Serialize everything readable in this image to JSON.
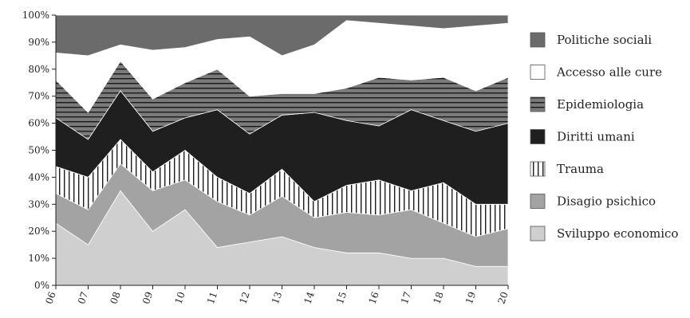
{
  "chart_data": {
    "type": "area",
    "stacked": true,
    "normalized": true,
    "title": "",
    "xlabel": "",
    "ylabel": "",
    "x": [
      "2006",
      "2007",
      "2008",
      "2009",
      "2010",
      "2011",
      "2012",
      "2013",
      "2014",
      "2015",
      "2016",
      "2017",
      "2018",
      "2019",
      "2020"
    ],
    "x_tick_labels": [
      "06",
      "07",
      "08",
      "09",
      "10",
      "11",
      "12",
      "13",
      "14",
      "15",
      "16",
      "17",
      "18",
      "19",
      "20"
    ],
    "y_tick_labels": [
      "0%",
      "10%",
      "20%",
      "30%",
      "40%",
      "50%",
      "60%",
      "70%",
      "80%",
      "90%",
      "100%"
    ],
    "ylim": [
      0,
      100
    ],
    "grid": false,
    "legend_position": "right",
    "series": [
      {
        "name": "Sviluppo economico",
        "color": "#cfcfcf",
        "pattern": "solid",
        "values": [
          23,
          15,
          35,
          20,
          28,
          14,
          16,
          18,
          14,
          12,
          12,
          10,
          10,
          7,
          7
        ]
      },
      {
        "name": "Disagio psichico",
        "color": "#a3a3a3",
        "pattern": "solid",
        "values": [
          11,
          13,
          10,
          15,
          11,
          17,
          10,
          15,
          11,
          15,
          14,
          18,
          13,
          11,
          14
        ]
      },
      {
        "name": "Trauma",
        "color": "#ffffff",
        "pattern": "vertical-lines",
        "values": [
          10,
          12,
          9,
          7,
          11,
          9,
          8,
          10,
          6,
          10,
          13,
          7,
          15,
          12,
          9
        ]
      },
      {
        "name": "Diritti umani",
        "color": "#1f1f1f",
        "pattern": "solid",
        "values": [
          18,
          14,
          18,
          15,
          12,
          25,
          22,
          20,
          33,
          24,
          20,
          30,
          23,
          27,
          30
        ]
      },
      {
        "name": "Epidemiologia",
        "color": "#7a7a7a",
        "pattern": "horizontal-lines",
        "values": [
          14,
          10,
          11,
          12,
          13,
          15,
          14,
          8,
          7,
          12,
          18,
          11,
          16,
          15,
          17
        ]
      },
      {
        "name": "Accesso alle cure",
        "color": "#ffffff",
        "pattern": "solid",
        "values": [
          10,
          21,
          6,
          18,
          13,
          11,
          22,
          14,
          18,
          25,
          20,
          20,
          18,
          24,
          20
        ]
      },
      {
        "name": "Politiche sociali",
        "color": "#6b6b6b",
        "pattern": "solid",
        "values": [
          14,
          15,
          11,
          13,
          12,
          9,
          8,
          15,
          11,
          2,
          3,
          4,
          5,
          4,
          3
        ]
      }
    ],
    "legend_order": [
      "Politiche sociali",
      "Accesso alle cure",
      "Epidemiologia",
      "Diritti umani",
      "Trauma",
      "Disagio psichico",
      "Sviluppo economico"
    ]
  }
}
